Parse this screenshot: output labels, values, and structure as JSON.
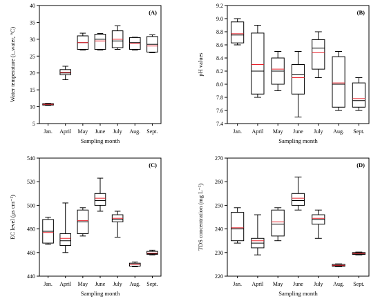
{
  "chart_data": [
    {
      "type": "box",
      "panel": "(A)",
      "xlabel": "Sampling month",
      "ylabel": "Water temperature (t_water, °C)",
      "ylim": [
        5,
        40
      ],
      "yticks": [
        5,
        10,
        15,
        20,
        25,
        30,
        35,
        40
      ],
      "categories": [
        "Jan.",
        "April",
        "May",
        "June",
        "July",
        "Aug.",
        "Sept."
      ],
      "boxes": [
        {
          "whisker_low": 10.4,
          "q1": 10.5,
          "median": 10.7,
          "mean": 10.7,
          "q3": 10.9,
          "whisker_high": 11.0
        },
        {
          "whisker_low": 18.0,
          "q1": 19.5,
          "median": 20.0,
          "mean": 20.2,
          "q3": 21.0,
          "whisker_high": 22.0
        },
        {
          "whisker_low": 26.8,
          "q1": 27.0,
          "median": 29.0,
          "mean": 29.0,
          "q3": 31.0,
          "whisker_high": 31.8
        },
        {
          "whisker_low": 26.8,
          "q1": 27.0,
          "median": 30.0,
          "mean": 29.5,
          "q3": 31.5,
          "whisker_high": 31.7
        },
        {
          "whisker_low": 27.0,
          "q1": 27.5,
          "median": 29.5,
          "mean": 30.0,
          "q3": 32.5,
          "whisker_high": 34.0
        },
        {
          "whisker_low": 26.8,
          "q1": 27.0,
          "median": 29.0,
          "mean": 28.8,
          "q3": 30.5,
          "whisker_high": 30.6
        },
        {
          "whisker_low": 26.0,
          "q1": 26.2,
          "median": 28.5,
          "mean": 28.0,
          "q3": 30.8,
          "whisker_high": 31.3
        }
      ]
    },
    {
      "type": "box",
      "panel": "(B)",
      "xlabel": "Sampling month",
      "ylabel": "pH values",
      "ylim": [
        7.4,
        9.2
      ],
      "yticks": [
        7.4,
        7.6,
        7.8,
        8.0,
        8.2,
        8.4,
        8.6,
        8.8,
        9.0,
        9.2
      ],
      "categories": [
        "Jan.",
        "April",
        "May",
        "June",
        "July",
        "Aug.",
        "Sept."
      ],
      "boxes": [
        {
          "whisker_low": 8.6,
          "q1": 8.63,
          "median": 8.75,
          "mean": 8.77,
          "q3": 8.95,
          "whisker_high": 9.0
        },
        {
          "whisker_low": 7.8,
          "q1": 7.85,
          "median": 8.2,
          "mean": 8.3,
          "q3": 8.78,
          "whisker_high": 8.9
        },
        {
          "whisker_low": 7.9,
          "q1": 8.0,
          "median": 8.2,
          "mean": 8.23,
          "q3": 8.4,
          "whisker_high": 8.5
        },
        {
          "whisker_low": 7.5,
          "q1": 7.85,
          "median": 8.15,
          "mean": 8.1,
          "q3": 8.3,
          "whisker_high": 8.5
        },
        {
          "whisker_low": 8.1,
          "q1": 8.23,
          "median": 8.55,
          "mean": 8.48,
          "q3": 8.68,
          "whisker_high": 8.8
        },
        {
          "whisker_low": 7.6,
          "q1": 7.65,
          "median": 8.0,
          "mean": 8.02,
          "q3": 8.42,
          "whisker_high": 8.5
        },
        {
          "whisker_low": 7.6,
          "q1": 7.65,
          "median": 7.75,
          "mean": 7.78,
          "q3": 8.02,
          "whisker_high": 8.1
        }
      ]
    },
    {
      "type": "box",
      "panel": "(C)",
      "xlabel": "Sampling month",
      "ylabel": "EC level (μs cm⁻¹)",
      "ylim": [
        440,
        540
      ],
      "yticks": [
        440,
        460,
        480,
        500,
        520,
        540
      ],
      "categories": [
        "Jan.",
        "April",
        "May",
        "June",
        "July",
        "Aug.",
        "Sept."
      ],
      "boxes": [
        {
          "whisker_low": 467,
          "q1": 468,
          "median": 478,
          "mean": 477,
          "q3": 488,
          "whisker_high": 490
        },
        {
          "whisker_low": 460,
          "q1": 466,
          "median": 470,
          "mean": 472,
          "q3": 476,
          "whisker_high": 502
        },
        {
          "whisker_low": 474,
          "q1": 476,
          "median": 486,
          "mean": 487,
          "q3": 496,
          "whisker_high": 498
        },
        {
          "whisker_low": 495,
          "q1": 500,
          "median": 504,
          "mean": 506,
          "q3": 510,
          "whisker_high": 523
        },
        {
          "whisker_low": 473,
          "q1": 486,
          "median": 488,
          "mean": 489,
          "q3": 492,
          "whisker_high": 495
        },
        {
          "whisker_low": 448,
          "q1": 448.5,
          "median": 450,
          "mean": 450,
          "q3": 451,
          "whisker_high": 452
        },
        {
          "whisker_low": 458,
          "q1": 458.5,
          "median": 459,
          "mean": 459.5,
          "q3": 461,
          "whisker_high": 462
        }
      ]
    },
    {
      "type": "box",
      "panel": "(D)",
      "xlabel": "Sampling month",
      "ylabel": "TDS concentration (mg L⁻¹)",
      "ylim": [
        220,
        270
      ],
      "yticks": [
        220,
        230,
        240,
        250,
        260,
        270
      ],
      "categories": [
        "Jan.",
        "April",
        "May",
        "June",
        "July",
        "Aug.",
        "Sept."
      ],
      "boxes": [
        {
          "whisker_low": 234,
          "q1": 235,
          "median": 240,
          "mean": 240.5,
          "q3": 247,
          "whisker_high": 249
        },
        {
          "whisker_low": 229,
          "q1": 232,
          "median": 234,
          "mean": 235,
          "q3": 236,
          "whisker_high": 246
        },
        {
          "whisker_low": 235,
          "q1": 237,
          "median": 242,
          "mean": 243,
          "q3": 248,
          "whisker_high": 249
        },
        {
          "whisker_low": 248,
          "q1": 250,
          "median": 252,
          "mean": 253,
          "q3": 255,
          "whisker_high": 262
        },
        {
          "whisker_low": 236,
          "q1": 242,
          "median": 244,
          "mean": 244.5,
          "q3": 246,
          "whisker_high": 248
        },
        {
          "whisker_low": 224,
          "q1": 224.2,
          "median": 224.5,
          "mean": 224.6,
          "q3": 225,
          "whisker_high": 225.2
        },
        {
          "whisker_low": 229,
          "q1": 229.2,
          "median": 229.5,
          "mean": 229.6,
          "q3": 230,
          "whisker_high": 230.2
        }
      ]
    }
  ],
  "colors": {
    "box_stroke": "#000000",
    "median_line": "#000000",
    "mean_line": "#e8202a",
    "axis": "#000000"
  }
}
